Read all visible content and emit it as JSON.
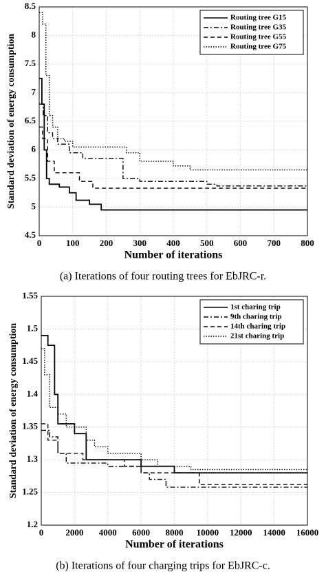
{
  "chart_data": [
    {
      "type": "line",
      "x_label": "Number of iterations",
      "y_label": "Standard deviation of energy consumption",
      "caption": "(a)  Iterations of four routing trees for EbJRC-r.",
      "xlim": [
        0,
        800
      ],
      "xticks": [
        0,
        100,
        200,
        300,
        400,
        500,
        600,
        700,
        800
      ],
      "ylim": [
        4.5,
        8.5
      ],
      "yticks": [
        4.5,
        5,
        5.5,
        6,
        6.5,
        7,
        7.5,
        8,
        8.5
      ],
      "grid": true,
      "legend": "upper right",
      "series": [
        {
          "name": "Routing tree G15",
          "color": "#000000",
          "line_style": "solid",
          "x": [
            0,
            8,
            8,
            15,
            15,
            22,
            22,
            30,
            30,
            60,
            60,
            90,
            90,
            110,
            110,
            150,
            150,
            185,
            185,
            800
          ],
          "values": [
            7.25,
            7.25,
            6.8,
            6.8,
            6.0,
            6.0,
            5.5,
            5.5,
            5.4,
            5.4,
            5.35,
            5.35,
            5.25,
            5.25,
            5.12,
            5.12,
            5.05,
            5.05,
            4.95,
            4.95
          ]
        },
        {
          "name": "Routing tree G35",
          "color": "#000000",
          "line_style": "dashdot",
          "x": [
            0,
            12,
            12,
            25,
            25,
            40,
            40,
            55,
            55,
            90,
            90,
            130,
            130,
            250,
            250,
            300,
            300,
            500,
            500,
            530,
            530,
            800
          ],
          "values": [
            6.8,
            6.8,
            6.6,
            6.6,
            6.3,
            6.3,
            6.2,
            6.2,
            6.1,
            6.1,
            5.95,
            5.95,
            5.85,
            5.85,
            5.5,
            5.5,
            5.45,
            5.45,
            5.4,
            5.4,
            5.37,
            5.37
          ]
        },
        {
          "name": "Routing tree G55",
          "color": "#000000",
          "line_style": "dashed",
          "x": [
            0,
            10,
            10,
            25,
            25,
            45,
            45,
            120,
            120,
            160,
            160,
            800
          ],
          "values": [
            6.4,
            6.4,
            6.2,
            6.2,
            5.8,
            5.8,
            5.6,
            5.6,
            5.45,
            5.45,
            5.33,
            5.33
          ]
        },
        {
          "name": "Routing tree G75",
          "color": "#000000",
          "line_style": "dotted",
          "x": [
            0,
            10,
            10,
            20,
            20,
            30,
            30,
            40,
            40,
            55,
            55,
            75,
            75,
            100,
            100,
            260,
            260,
            300,
            300,
            400,
            400,
            450,
            450,
            800
          ],
          "values": [
            8.4,
            8.4,
            8.2,
            8.2,
            7.3,
            7.3,
            6.6,
            6.6,
            6.4,
            6.4,
            6.2,
            6.2,
            6.15,
            6.15,
            6.05,
            6.05,
            5.95,
            5.95,
            5.8,
            5.8,
            5.72,
            5.72,
            5.65,
            5.65
          ]
        }
      ]
    },
    {
      "type": "line",
      "x_label": "Number of iterations",
      "y_label": "Standard deviation of energy consumption",
      "caption": "(b)  Iterations of four charging trips for EbJRC-c.",
      "xlim": [
        0,
        16000
      ],
      "xticks": [
        0,
        2000,
        4000,
        6000,
        8000,
        10000,
        12000,
        14000,
        16000
      ],
      "ylim": [
        1.2,
        1.55
      ],
      "yticks": [
        1.2,
        1.25,
        1.3,
        1.35,
        1.4,
        1.45,
        1.5,
        1.55
      ],
      "grid": true,
      "legend": "upper right",
      "series": [
        {
          "name": "1st charing trip",
          "color": "#000000",
          "line_style": "solid",
          "x": [
            0,
            400,
            400,
            800,
            800,
            1000,
            1000,
            2000,
            2000,
            2700,
            2700,
            6000,
            6000,
            8000,
            8000,
            16000
          ],
          "values": [
            1.49,
            1.49,
            1.475,
            1.475,
            1.4,
            1.4,
            1.355,
            1.355,
            1.34,
            1.34,
            1.3,
            1.3,
            1.29,
            1.29,
            1.28,
            1.28
          ]
        },
        {
          "name": "9th charing trip",
          "color": "#000000",
          "line_style": "dashdot",
          "x": [
            0,
            500,
            500,
            1000,
            1000,
            1500,
            1500,
            4000,
            4000,
            6000,
            6000,
            6500,
            6500,
            7500,
            7500,
            16000
          ],
          "values": [
            1.345,
            1.345,
            1.335,
            1.335,
            1.31,
            1.31,
            1.295,
            1.295,
            1.29,
            1.29,
            1.28,
            1.28,
            1.27,
            1.27,
            1.258,
            1.258
          ]
        },
        {
          "name": "14th charing trip",
          "color": "#000000",
          "line_style": "dashed",
          "x": [
            0,
            400,
            400,
            1000,
            1000,
            2500,
            2500,
            5000,
            5000,
            6000,
            6000,
            9500,
            9500,
            16000
          ],
          "values": [
            1.355,
            1.355,
            1.33,
            1.33,
            1.31,
            1.31,
            1.3,
            1.3,
            1.29,
            1.29,
            1.28,
            1.28,
            1.262,
            1.262
          ]
        },
        {
          "name": "21st charing trip",
          "color": "#000000",
          "line_style": "dotted",
          "x": [
            0,
            200,
            200,
            500,
            500,
            1000,
            1000,
            1500,
            1500,
            2700,
            2700,
            3200,
            3200,
            4000,
            4000,
            6000,
            6000,
            7000,
            7000,
            9000,
            9000,
            16000
          ],
          "values": [
            1.47,
            1.47,
            1.43,
            1.43,
            1.38,
            1.38,
            1.37,
            1.37,
            1.35,
            1.35,
            1.33,
            1.33,
            1.32,
            1.32,
            1.31,
            1.31,
            1.3,
            1.3,
            1.29,
            1.29,
            1.285,
            1.285
          ]
        }
      ]
    }
  ]
}
